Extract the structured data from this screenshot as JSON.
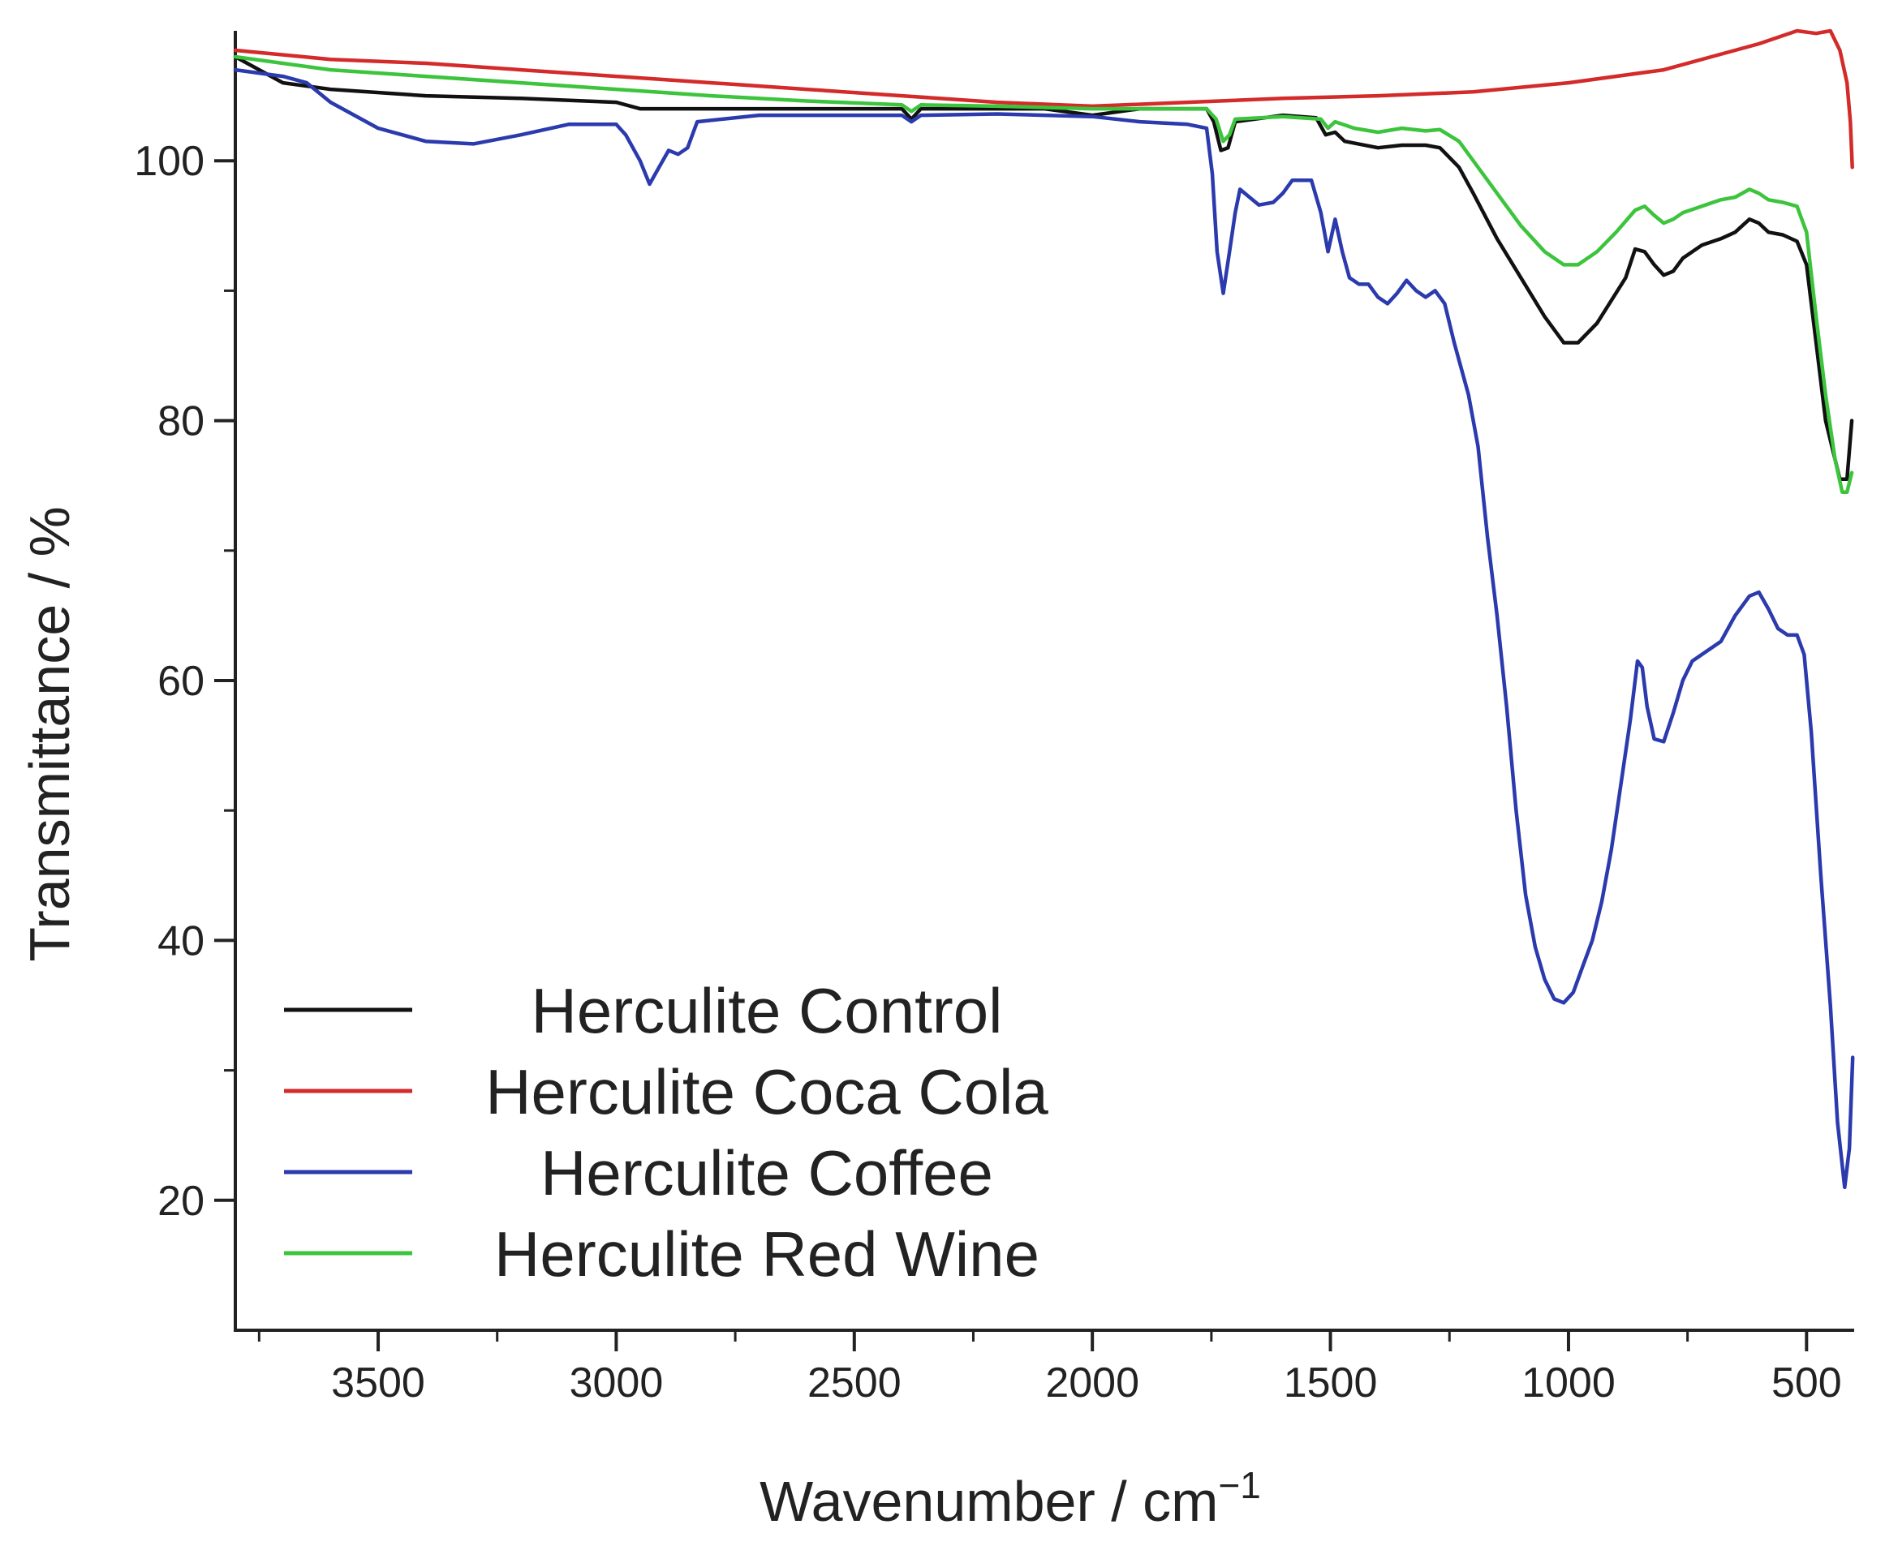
{
  "chart_data": {
    "type": "line",
    "xlabel": "Wavenumber / cm",
    "xlabel_superscript": "−1",
    "ylabel": "Transmittance / %",
    "xlim": [
      3800,
      400
    ],
    "ylim": [
      10,
      110
    ],
    "x_reversed": true,
    "grid": false,
    "legend_position": "bottom-left",
    "x_ticks": [
      3500,
      3000,
      2500,
      2000,
      1500,
      1000,
      500
    ],
    "x_tick_labels": [
      "3500",
      "3000",
      "2500",
      "2000",
      "1500",
      "1000",
      "500"
    ],
    "x_minor_ticks": [
      3750,
      3250,
      2750,
      2250,
      1750,
      1250,
      750
    ],
    "y_ticks": [
      100,
      80,
      60,
      40,
      20
    ],
    "y_tick_labels": [
      "100",
      "80",
      "60",
      "40",
      "20"
    ],
    "y_minor_ticks": [
      90,
      70,
      50,
      30
    ],
    "series": [
      {
        "name": "Herculite Control",
        "color": "#111111",
        "points": [
          [
            3800,
            108
          ],
          [
            3700,
            106
          ],
          [
            3600,
            105.5
          ],
          [
            3400,
            105
          ],
          [
            3200,
            104.8
          ],
          [
            3000,
            104.5
          ],
          [
            2950,
            104
          ],
          [
            2900,
            104
          ],
          [
            2800,
            104
          ],
          [
            2600,
            104
          ],
          [
            2400,
            104
          ],
          [
            2380,
            103.2
          ],
          [
            2360,
            104
          ],
          [
            2200,
            104
          ],
          [
            2100,
            104
          ],
          [
            2000,
            103.5
          ],
          [
            1900,
            104
          ],
          [
            1760,
            104
          ],
          [
            1745,
            103
          ],
          [
            1730,
            100.8
          ],
          [
            1715,
            101
          ],
          [
            1700,
            103
          ],
          [
            1600,
            103.5
          ],
          [
            1530,
            103.3
          ],
          [
            1510,
            102
          ],
          [
            1490,
            102.2
          ],
          [
            1470,
            101.5
          ],
          [
            1400,
            101
          ],
          [
            1350,
            101.2
          ],
          [
            1300,
            101.2
          ],
          [
            1270,
            101
          ],
          [
            1230,
            99.5
          ],
          [
            1200,
            97.5
          ],
          [
            1150,
            94
          ],
          [
            1100,
            91
          ],
          [
            1050,
            88
          ],
          [
            1010,
            86
          ],
          [
            980,
            86
          ],
          [
            940,
            87.5
          ],
          [
            880,
            91
          ],
          [
            860,
            93.2
          ],
          [
            840,
            93
          ],
          [
            820,
            92
          ],
          [
            800,
            91.2
          ],
          [
            780,
            91.5
          ],
          [
            760,
            92.5
          ],
          [
            720,
            93.5
          ],
          [
            680,
            94
          ],
          [
            650,
            94.5
          ],
          [
            620,
            95.5
          ],
          [
            600,
            95.2
          ],
          [
            580,
            94.5
          ],
          [
            550,
            94.3
          ],
          [
            520,
            93.8
          ],
          [
            500,
            92
          ],
          [
            480,
            86
          ],
          [
            460,
            80
          ],
          [
            430,
            75.5
          ],
          [
            415,
            75.5
          ],
          [
            405,
            80
          ]
        ]
      },
      {
        "name": "Herculite Coca Cola",
        "color": "#d32a2a",
        "points": [
          [
            3800,
            108.5
          ],
          [
            3600,
            107.8
          ],
          [
            3400,
            107.5
          ],
          [
            3200,
            107
          ],
          [
            3000,
            106.5
          ],
          [
            2800,
            106
          ],
          [
            2600,
            105.5
          ],
          [
            2400,
            105
          ],
          [
            2200,
            104.5
          ],
          [
            2000,
            104.2
          ],
          [
            1800,
            104.5
          ],
          [
            1600,
            104.8
          ],
          [
            1400,
            105
          ],
          [
            1200,
            105.3
          ],
          [
            1000,
            106
          ],
          [
            800,
            107
          ],
          [
            700,
            108
          ],
          [
            600,
            109
          ],
          [
            520,
            110
          ],
          [
            480,
            109.8
          ],
          [
            450,
            110
          ],
          [
            430,
            108.5
          ],
          [
            415,
            106
          ],
          [
            408,
            103
          ],
          [
            404,
            99.5
          ]
        ]
      },
      {
        "name": "Herculite Coffee",
        "color": "#2b3aad",
        "points": [
          [
            3800,
            107
          ],
          [
            3700,
            106.5
          ],
          [
            3650,
            106
          ],
          [
            3600,
            104.5
          ],
          [
            3500,
            102.5
          ],
          [
            3400,
            101.5
          ],
          [
            3300,
            101.3
          ],
          [
            3200,
            102
          ],
          [
            3100,
            102.8
          ],
          [
            3000,
            102.8
          ],
          [
            2980,
            102
          ],
          [
            2950,
            100
          ],
          [
            2930,
            98.2
          ],
          [
            2910,
            99.5
          ],
          [
            2890,
            100.8
          ],
          [
            2870,
            100.5
          ],
          [
            2850,
            101
          ],
          [
            2830,
            103
          ],
          [
            2700,
            103.5
          ],
          [
            2600,
            103.5
          ],
          [
            2400,
            103.5
          ],
          [
            2380,
            103
          ],
          [
            2360,
            103.5
          ],
          [
            2200,
            103.6
          ],
          [
            2000,
            103.4
          ],
          [
            1900,
            103
          ],
          [
            1800,
            102.8
          ],
          [
            1760,
            102.5
          ],
          [
            1748,
            99
          ],
          [
            1738,
            93
          ],
          [
            1725,
            89.8
          ],
          [
            1712,
            93
          ],
          [
            1700,
            96
          ],
          [
            1690,
            97.8
          ],
          [
            1670,
            97.2
          ],
          [
            1650,
            96.6
          ],
          [
            1620,
            96.8
          ],
          [
            1600,
            97.5
          ],
          [
            1580,
            98.5
          ],
          [
            1540,
            98.5
          ],
          [
            1520,
            96
          ],
          [
            1505,
            93
          ],
          [
            1490,
            95.5
          ],
          [
            1475,
            93
          ],
          [
            1460,
            91
          ],
          [
            1440,
            90.5
          ],
          [
            1420,
            90.5
          ],
          [
            1400,
            89.5
          ],
          [
            1380,
            89
          ],
          [
            1360,
            89.8
          ],
          [
            1340,
            90.8
          ],
          [
            1320,
            90
          ],
          [
            1300,
            89.5
          ],
          [
            1280,
            90
          ],
          [
            1260,
            89
          ],
          [
            1240,
            86
          ],
          [
            1210,
            82
          ],
          [
            1190,
            78
          ],
          [
            1170,
            71
          ],
          [
            1150,
            65
          ],
          [
            1130,
            58
          ],
          [
            1110,
            50
          ],
          [
            1090,
            43.5
          ],
          [
            1070,
            39.5
          ],
          [
            1050,
            37
          ],
          [
            1030,
            35.5
          ],
          [
            1010,
            35.2
          ],
          [
            990,
            36
          ],
          [
            970,
            38
          ],
          [
            950,
            40
          ],
          [
            930,
            43
          ],
          [
            910,
            47
          ],
          [
            890,
            52
          ],
          [
            870,
            57
          ],
          [
            855,
            61.5
          ],
          [
            845,
            61
          ],
          [
            835,
            58
          ],
          [
            820,
            55.5
          ],
          [
            800,
            55.3
          ],
          [
            780,
            57.5
          ],
          [
            760,
            60
          ],
          [
            740,
            61.5
          ],
          [
            700,
            62.5
          ],
          [
            680,
            63
          ],
          [
            650,
            65
          ],
          [
            620,
            66.5
          ],
          [
            600,
            66.8
          ],
          [
            580,
            65.5
          ],
          [
            560,
            64
          ],
          [
            540,
            63.5
          ],
          [
            520,
            63.5
          ],
          [
            505,
            62
          ],
          [
            490,
            56
          ],
          [
            470,
            45
          ],
          [
            450,
            35
          ],
          [
            435,
            26
          ],
          [
            420,
            21
          ],
          [
            410,
            24
          ],
          [
            403,
            31
          ]
        ]
      },
      {
        "name": "Herculite Red Wine",
        "color": "#3cc43c",
        "points": [
          [
            3800,
            108
          ],
          [
            3600,
            107
          ],
          [
            3400,
            106.5
          ],
          [
            3200,
            106
          ],
          [
            3000,
            105.5
          ],
          [
            2800,
            105
          ],
          [
            2600,
            104.6
          ],
          [
            2400,
            104.3
          ],
          [
            2380,
            103.8
          ],
          [
            2360,
            104.3
          ],
          [
            2200,
            104.2
          ],
          [
            2000,
            104
          ],
          [
            1900,
            104
          ],
          [
            1760,
            104
          ],
          [
            1740,
            103.2
          ],
          [
            1725,
            101.5
          ],
          [
            1712,
            102
          ],
          [
            1700,
            103.2
          ],
          [
            1600,
            103.4
          ],
          [
            1520,
            103.2
          ],
          [
            1505,
            102.5
          ],
          [
            1490,
            103
          ],
          [
            1450,
            102.5
          ],
          [
            1400,
            102.2
          ],
          [
            1350,
            102.5
          ],
          [
            1300,
            102.3
          ],
          [
            1270,
            102.4
          ],
          [
            1230,
            101.5
          ],
          [
            1200,
            100
          ],
          [
            1150,
            97.5
          ],
          [
            1100,
            95
          ],
          [
            1050,
            93
          ],
          [
            1010,
            92
          ],
          [
            980,
            92
          ],
          [
            940,
            93
          ],
          [
            900,
            94.5
          ],
          [
            860,
            96.2
          ],
          [
            840,
            96.5
          ],
          [
            820,
            95.8
          ],
          [
            800,
            95.2
          ],
          [
            780,
            95.5
          ],
          [
            760,
            96
          ],
          [
            720,
            96.5
          ],
          [
            680,
            97
          ],
          [
            650,
            97.2
          ],
          [
            620,
            97.8
          ],
          [
            600,
            97.5
          ],
          [
            580,
            97
          ],
          [
            550,
            96.8
          ],
          [
            520,
            96.5
          ],
          [
            500,
            94.5
          ],
          [
            480,
            88
          ],
          [
            460,
            82
          ],
          [
            440,
            77
          ],
          [
            425,
            74.5
          ],
          [
            415,
            74.5
          ],
          [
            405,
            76
          ]
        ]
      }
    ]
  }
}
